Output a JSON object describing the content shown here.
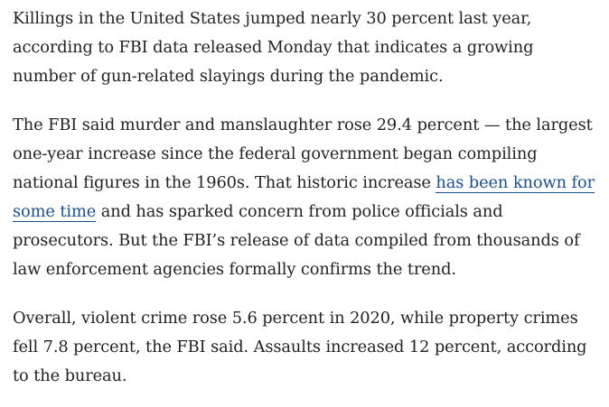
{
  "article": {
    "paragraphs": [
      {
        "text": "Killings in the United States jumped nearly 30 percent last year, according to FBI data released Monday that indicates a growing number of gun-related slayings during the pandemic."
      },
      {
        "before_link": "The FBI said murder and manslaughter rose 29.4 percent — the largest one-year increase since the federal government began compiling national figures in the 1960s. That historic increase ",
        "link_text": "has been known for some time",
        "after_link": " and has sparked concern from police officials and prosecutors. But the FBI’s release of data compiled from thousands of law enforcement agencies formally confirms the trend."
      },
      {
        "text": "Overall, violent crime rose 5.6 percent in 2020, while property crimes fell 7.8 percent, the FBI said. Assaults increased 12 percent, according to the bureau."
      }
    ]
  },
  "colors": {
    "text": "#222222",
    "link": "#1a4e8f",
    "background": "#ffffff"
  }
}
